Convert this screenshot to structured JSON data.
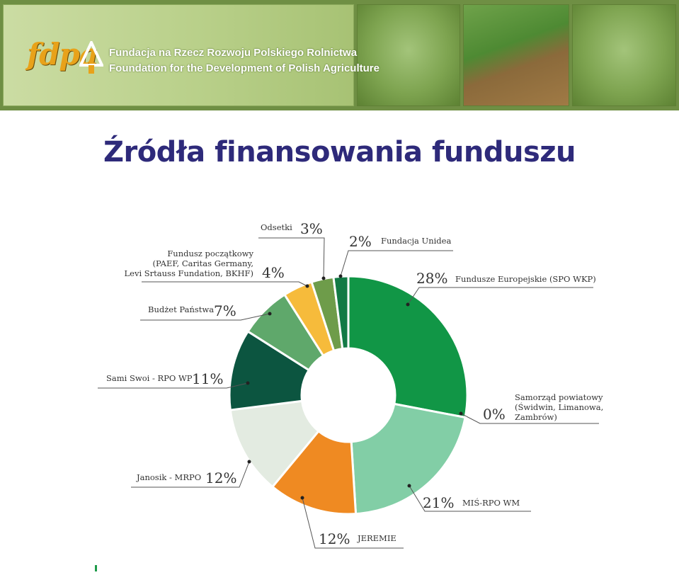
{
  "header": {
    "logo_text": "fdpa",
    "org_name_pl": "Fundacja na Rzecz Rozwoju Polskiego Rolnictwa",
    "org_name_en": "Foundation for the Development of Polish Agriculture"
  },
  "page": {
    "title": "Źródła finansowania funduszu"
  },
  "chart_data": {
    "type": "pie",
    "donut": true,
    "slices": [
      {
        "pct_label": "28%",
        "value": 28,
        "label_lines": [
          "Fundusze Europejskie (SPO WKP)"
        ],
        "color": "#119646"
      },
      {
        "pct_label": "0%",
        "value": 0,
        "label_lines": [
          "Samorząd powiatowy",
          "(Świdwin, Limanowa,",
          "Zambrów)"
        ],
        "color": "#119646"
      },
      {
        "pct_label": "21%",
        "value": 21,
        "label_lines": [
          "MIŚ-RPO WM"
        ],
        "color": "#82cea6"
      },
      {
        "pct_label": "12%",
        "value": 12,
        "label_lines": [
          "JEREMIE"
        ],
        "color": "#ef8a22"
      },
      {
        "pct_label": "12%",
        "value": 12,
        "label_lines": [
          "Janosik - MRPO"
        ],
        "color": "#e3ebe1"
      },
      {
        "pct_label": "11%",
        "value": 11,
        "label_lines": [
          "Sami Swoi - RPO WP"
        ],
        "color": "#0c5540"
      },
      {
        "pct_label": "7%",
        "value": 7,
        "label_lines": [
          "Budżet Państwa"
        ],
        "color": "#5fa86b"
      },
      {
        "pct_label": "4%",
        "value": 4,
        "label_lines": [
          "Fundusz początkowy",
          "(PAEF, Caritas Germany,",
          "Levi Srtauss Fundation, BKHF)"
        ],
        "color": "#f6bb3b"
      },
      {
        "pct_label": "3%",
        "value": 3,
        "label_lines": [
          "Odsetki"
        ],
        "color": "#6e9c4a"
      },
      {
        "pct_label": "2%",
        "value": 2,
        "label_lines": [
          "Fundacja Unidea"
        ],
        "color": "#127a45"
      }
    ]
  }
}
